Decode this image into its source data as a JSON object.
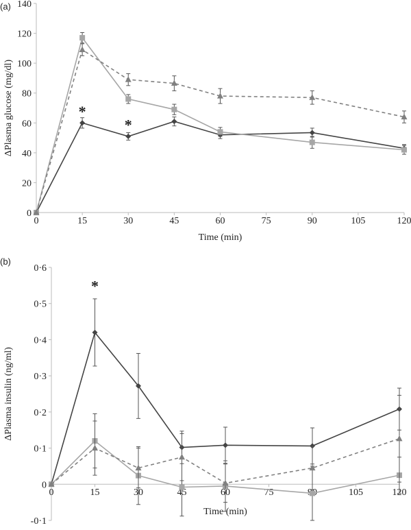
{
  "chart_data": [
    {
      "type": "line",
      "panel_label": "(a)",
      "xlabel": "Time (min)",
      "ylabel": "ΔPlasma glucose (mg/dl)",
      "xlim": [
        0,
        120
      ],
      "ylim": [
        0,
        140
      ],
      "xticks": [
        0,
        15,
        30,
        45,
        60,
        75,
        90,
        105,
        120
      ],
      "yticks": [
        0,
        20,
        40,
        60,
        80,
        100,
        120,
        140
      ],
      "ytick_labels": [
        "0",
        "20",
        "40",
        "60",
        "80",
        "100",
        "120",
        "140"
      ],
      "x": [
        0,
        15,
        30,
        45,
        60,
        90,
        120
      ],
      "series": [
        {
          "marker": "diamond",
          "line": "solid",
          "color": "#444444",
          "values": [
            0,
            60,
            51,
            61,
            52,
            53.5,
            43
          ],
          "errors": [
            0,
            3.5,
            2.5,
            3,
            2.5,
            3,
            2.5
          ]
        },
        {
          "marker": "square",
          "line": "solid",
          "color": "#a6a6a6",
          "values": [
            0,
            117,
            76,
            69,
            54,
            47,
            42
          ],
          "errors": [
            0,
            3.5,
            3,
            3.5,
            3,
            4,
            3
          ]
        },
        {
          "marker": "triangle",
          "line": "dashed",
          "color": "#808080",
          "values": [
            0,
            109,
            89,
            86.5,
            78,
            77,
            64
          ],
          "errors": [
            0,
            4,
            4,
            5,
            5,
            4.5,
            4
          ]
        }
      ],
      "annotations": [
        {
          "text": "*",
          "x": 15,
          "y": 68
        },
        {
          "text": "*",
          "x": 30,
          "y": 59
        }
      ]
    },
    {
      "type": "line",
      "panel_label": "(b)",
      "xlabel": "Time (min)",
      "ylabel": "ΔPlasma insulin (ng/ml)",
      "xlim": [
        0,
        120
      ],
      "ylim": [
        -0.1,
        0.6
      ],
      "xticks": [
        0,
        15,
        30,
        45,
        60,
        75,
        90,
        105,
        120
      ],
      "yticks": [
        -0.1,
        0,
        0.1,
        0.2,
        0.3,
        0.4,
        0.5,
        0.6
      ],
      "ytick_labels": [
        "-0·1",
        "0",
        "0·1",
        "0·2",
        "0·3",
        "0·4",
        "0·5",
        "0·6"
      ],
      "x": [
        0,
        15,
        30,
        45,
        60,
        90,
        120
      ],
      "series": [
        {
          "marker": "diamond",
          "line": "solid",
          "color": "#444444",
          "values": [
            0,
            0.42,
            0.272,
            0.102,
            0.108,
            0.106,
            0.208
          ],
          "errors": [
            0,
            0.093,
            0.09,
            0.045,
            0.05,
            0.05,
            0.058
          ]
        },
        {
          "marker": "square",
          "line": "solid",
          "color": "#a6a6a6",
          "values": [
            0,
            0.12,
            0.024,
            -0.008,
            -0.005,
            -0.025,
            0.025
          ],
          "errors": [
            0,
            0.075,
            0.08,
            0.08,
            0.07,
            0.075,
            0.05
          ]
        },
        {
          "marker": "triangle",
          "line": "dashed",
          "color": "#808080",
          "values": [
            0,
            0.1,
            0.045,
            0.075,
            0.003,
            0.045,
            0.126
          ],
          "errors": [
            0,
            0.075,
            0.055,
            0.065,
            0.053,
            0.06,
            0.12
          ]
        }
      ],
      "annotations": [
        {
          "text": "*",
          "x": 15,
          "y": 0.55
        }
      ]
    }
  ]
}
